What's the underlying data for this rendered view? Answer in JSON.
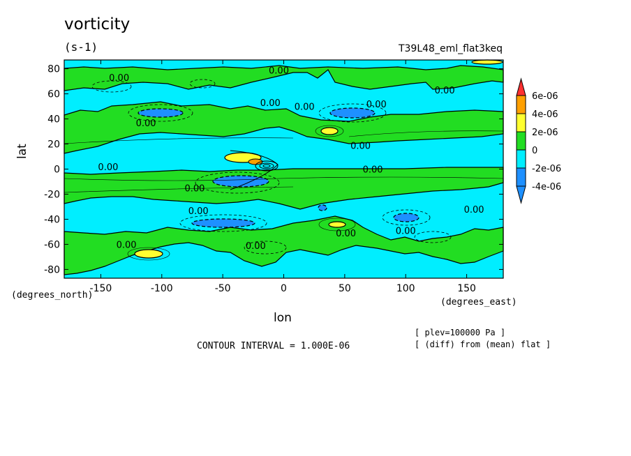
{
  "chart_data": {
    "type": "heatmap",
    "title": "vorticity",
    "units": "(s-1)",
    "case_name": "T39L48_eml_flat3keq",
    "xlabel": "lon",
    "ylabel": "lat",
    "xunits": "(degrees_east)",
    "yunits": "(degrees_north)",
    "xlim": [
      -180,
      180
    ],
    "ylim": [
      -87,
      87
    ],
    "x_ticks": [
      -150,
      -100,
      -50,
      0,
      50,
      100,
      150
    ],
    "y_ticks": [
      80,
      60,
      40,
      20,
      0,
      -20,
      -40,
      -60,
      -80
    ],
    "contour_interval_text": "CONTOUR INTERVAL = 1.000E-06",
    "notes": [
      "[ plev=100000 Pa ]",
      "[ (diff) from (mean) flat ]"
    ],
    "colorbar": {
      "labels": [
        "6e-06",
        "4e-06",
        "2e-06",
        "0",
        "-2e-06",
        "-4e-06"
      ],
      "colors": [
        "#ff3030",
        "#ffa000",
        "#ffff30",
        "#22dd22",
        "#00eeff",
        "#1e90ff"
      ],
      "extend": "both"
    },
    "contour_labels": [
      {
        "text": "0.00",
        "lon": -135,
        "lat": 73
      },
      {
        "text": "0.00",
        "lon": -4,
        "lat": 79
      },
      {
        "text": "0.00",
        "lon": 132,
        "lat": 63
      },
      {
        "text": "0.00",
        "lon": -11,
        "lat": 53
      },
      {
        "text": "0.00",
        "lon": 76,
        "lat": 52
      },
      {
        "text": "0.00",
        "lon": 17,
        "lat": 50
      },
      {
        "text": "0.00",
        "lon": -113,
        "lat": 37
      },
      {
        "text": "0.00",
        "lon": 63,
        "lat": 19
      },
      {
        "text": "0.00",
        "lon": -144,
        "lat": 2
      },
      {
        "text": "0.00",
        "lon": 73,
        "lat": 0
      },
      {
        "text": "0.00",
        "lon": -73,
        "lat": -15
      },
      {
        "text": "0.00",
        "lon": -70,
        "lat": -33
      },
      {
        "text": "0.00",
        "lon": 156,
        "lat": -32
      },
      {
        "text": "0.00",
        "lon": 51,
        "lat": -51
      },
      {
        "text": "0.00",
        "lon": 100,
        "lat": -49
      },
      {
        "text": "0.00",
        "lon": -129,
        "lat": -60
      },
      {
        "text": "0.00",
        "lon": -23,
        "lat": -61
      }
    ]
  }
}
